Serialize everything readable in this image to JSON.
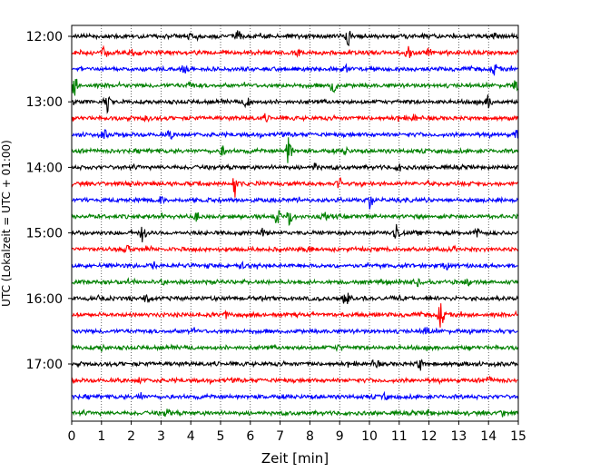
{
  "chart_data": {
    "type": "line",
    "xlabel": "Zeit  [min]",
    "ylabel": "UTC (Lokalzeit = UTC + 01:00)",
    "xlim": [
      0,
      15
    ],
    "x_ticks": [
      0,
      1,
      2,
      3,
      4,
      5,
      6,
      7,
      8,
      9,
      10,
      11,
      12,
      13,
      14,
      15
    ],
    "y_tick_labels": [
      "12:00",
      "13:00",
      "14:00",
      "15:00",
      "16:00",
      "17:00"
    ],
    "grid": "vertical dotted",
    "trace_interval_min": 15,
    "trace_colors": [
      "#000000",
      "#ff0000",
      "#0000ff",
      "#008000"
    ],
    "series": [
      {
        "start": "12:00",
        "color": "#000000",
        "events": [
          {
            "t": 4.0,
            "a": 4
          },
          {
            "t": 5.6,
            "a": 5
          },
          {
            "t": 9.3,
            "a": 8
          },
          {
            "t": 14.2,
            "a": 3
          }
        ]
      },
      {
        "start": "12:15",
        "color": "#ff0000",
        "events": [
          {
            "t": 1.1,
            "a": 5
          },
          {
            "t": 2.0,
            "a": 3
          },
          {
            "t": 7.6,
            "a": 3
          },
          {
            "t": 11.3,
            "a": 6
          },
          {
            "t": 12.0,
            "a": 4
          }
        ]
      },
      {
        "start": "12:30",
        "color": "#0000ff",
        "events": [
          {
            "t": 3.8,
            "a": 4
          },
          {
            "t": 9.2,
            "a": 4
          },
          {
            "t": 14.2,
            "a": 5
          }
        ]
      },
      {
        "start": "12:45",
        "color": "#008000",
        "events": [
          {
            "t": 0.1,
            "a": 12
          },
          {
            "t": 4.0,
            "a": 4
          },
          {
            "t": 8.8,
            "a": 11
          },
          {
            "t": 14.9,
            "a": 5
          }
        ]
      },
      {
        "start": "13:00",
        "color": "#000000",
        "events": [
          {
            "t": 1.2,
            "a": 10
          },
          {
            "t": 5.9,
            "a": 8
          },
          {
            "t": 14.0,
            "a": 7
          }
        ]
      },
      {
        "start": "13:15",
        "color": "#ff0000",
        "events": [
          {
            "t": 2.5,
            "a": 3
          },
          {
            "t": 6.5,
            "a": 3
          },
          {
            "t": 11.5,
            "a": 3
          }
        ]
      },
      {
        "start": "13:30",
        "color": "#0000ff",
        "events": [
          {
            "t": 1.1,
            "a": 4
          },
          {
            "t": 3.3,
            "a": 4
          },
          {
            "t": 15.0,
            "a": 12
          }
        ]
      },
      {
        "start": "13:45",
        "color": "#008000",
        "events": [
          {
            "t": 5.1,
            "a": 6
          },
          {
            "t": 7.3,
            "a": 16
          },
          {
            "t": 9.2,
            "a": 4
          }
        ]
      },
      {
        "start": "14:00",
        "color": "#000000",
        "events": [
          {
            "t": 8.2,
            "a": 4
          },
          {
            "t": 11.0,
            "a": 3
          }
        ]
      },
      {
        "start": "14:15",
        "color": "#ff0000",
        "events": [
          {
            "t": 5.5,
            "a": 17
          },
          {
            "t": 9.0,
            "a": 5
          }
        ]
      },
      {
        "start": "14:30",
        "color": "#0000ff",
        "events": [
          {
            "t": 10.0,
            "a": 10
          },
          {
            "t": 3.0,
            "a": 3
          }
        ]
      },
      {
        "start": "14:45",
        "color": "#008000",
        "events": [
          {
            "t": 4.2,
            "a": 4
          },
          {
            "t": 6.9,
            "a": 7
          },
          {
            "t": 7.3,
            "a": 10
          },
          {
            "t": 8.5,
            "a": 4
          }
        ]
      },
      {
        "start": "15:00",
        "color": "#000000",
        "events": [
          {
            "t": 2.4,
            "a": 10
          },
          {
            "t": 6.4,
            "a": 4
          },
          {
            "t": 10.9,
            "a": 12
          },
          {
            "t": 13.6,
            "a": 4
          }
        ]
      },
      {
        "start": "15:15",
        "color": "#ff0000",
        "events": [
          {
            "t": 1.9,
            "a": 3
          },
          {
            "t": 8.0,
            "a": 3
          }
        ]
      },
      {
        "start": "15:30",
        "color": "#0000ff",
        "events": [
          {
            "t": 2.8,
            "a": 3
          },
          {
            "t": 5.7,
            "a": 3
          },
          {
            "t": 12.6,
            "a": 3
          }
        ]
      },
      {
        "start": "15:45",
        "color": "#008000",
        "events": [
          {
            "t": 3.1,
            "a": 3
          },
          {
            "t": 11.6,
            "a": 3
          },
          {
            "t": 13.3,
            "a": 3
          }
        ]
      },
      {
        "start": "16:00",
        "color": "#000000",
        "events": [
          {
            "t": 2.5,
            "a": 4
          },
          {
            "t": 9.2,
            "a": 10
          }
        ]
      },
      {
        "start": "16:15",
        "color": "#ff0000",
        "events": [
          {
            "t": 5.2,
            "a": 3
          },
          {
            "t": 12.4,
            "a": 13
          }
        ]
      },
      {
        "start": "16:30",
        "color": "#0000ff",
        "events": [
          {
            "t": 11.9,
            "a": 5
          },
          {
            "t": 4.0,
            "a": 3
          }
        ]
      },
      {
        "start": "16:45",
        "color": "#008000",
        "events": [
          {
            "t": 1.0,
            "a": 3
          },
          {
            "t": 9.0,
            "a": 4
          }
        ]
      },
      {
        "start": "17:00",
        "color": "#000000",
        "events": [
          {
            "t": 10.2,
            "a": 5
          },
          {
            "t": 11.7,
            "a": 6
          }
        ]
      },
      {
        "start": "17:15",
        "color": "#ff0000",
        "events": [
          {
            "t": 2.3,
            "a": 3
          },
          {
            "t": 14.0,
            "a": 3
          }
        ]
      },
      {
        "start": "17:30",
        "color": "#0000ff",
        "events": [
          {
            "t": 2.3,
            "a": 4
          },
          {
            "t": 10.5,
            "a": 3
          }
        ]
      },
      {
        "start": "17:45",
        "color": "#008000",
        "events": [
          {
            "t": 3.2,
            "a": 5
          },
          {
            "t": 12.0,
            "a": 3
          },
          {
            "t": 14.5,
            "a": 4
          }
        ]
      }
    ]
  }
}
